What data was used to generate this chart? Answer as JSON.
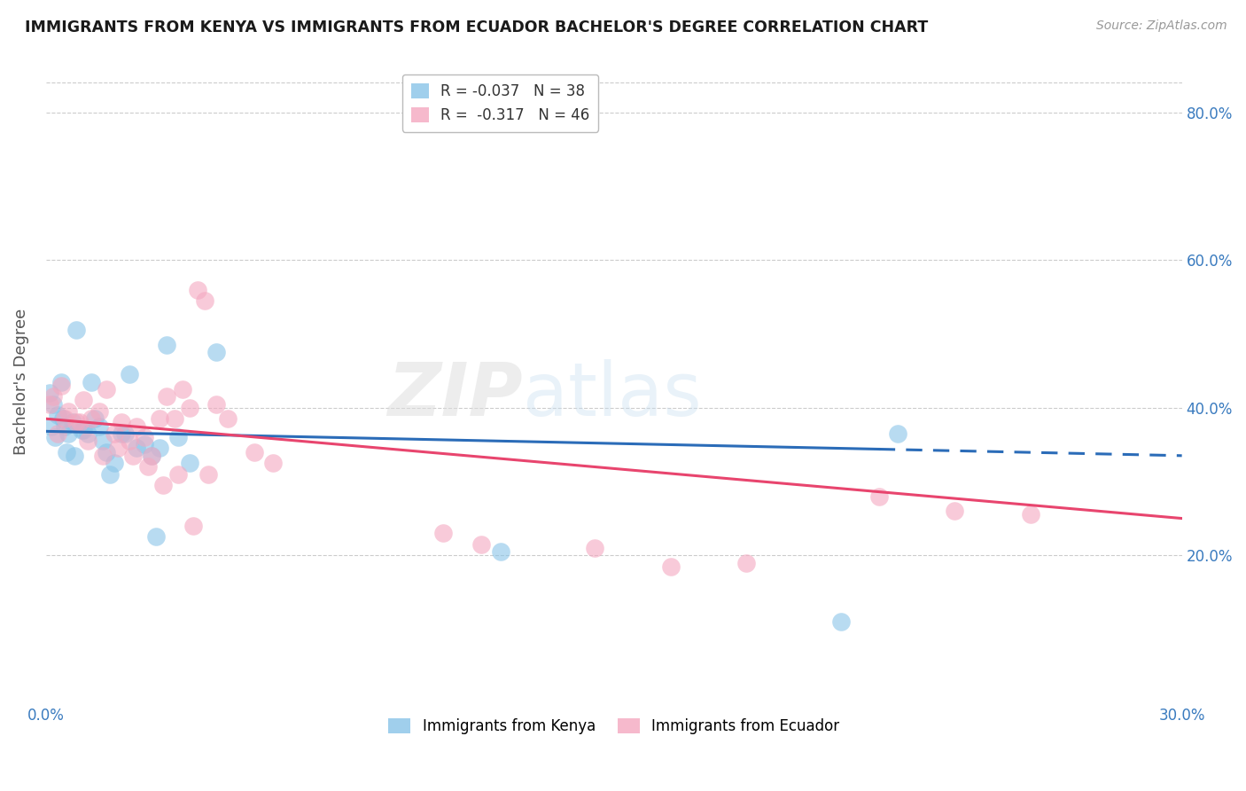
{
  "title": "IMMIGRANTS FROM KENYA VS IMMIGRANTS FROM ECUADOR BACHELOR'S DEGREE CORRELATION CHART",
  "source_text": "Source: ZipAtlas.com",
  "ylabel": "Bachelor's Degree",
  "kenya_color": "#89c4e8",
  "ecuador_color": "#f4a8c0",
  "kenya_line_color": "#2b6cb8",
  "ecuador_line_color": "#e8456e",
  "background_color": "#ffffff",
  "grid_color": "#cccccc",
  "xlim": [
    0.0,
    30.0
  ],
  "ylim": [
    0.0,
    87.0
  ],
  "kenya_scatter_x": [
    0.1,
    0.2,
    0.3,
    0.4,
    0.5,
    0.6,
    0.7,
    0.8,
    1.0,
    1.1,
    1.2,
    1.3,
    1.5,
    1.6,
    1.8,
    2.0,
    2.2,
    2.4,
    2.6,
    2.8,
    3.0,
    3.2,
    3.5,
    3.8,
    0.15,
    0.25,
    0.45,
    0.55,
    0.75,
    0.95,
    1.4,
    1.7,
    2.1,
    4.5,
    12.0,
    21.0,
    22.5,
    2.9
  ],
  "kenya_scatter_y": [
    42.0,
    40.5,
    39.0,
    43.5,
    37.5,
    36.5,
    38.0,
    50.5,
    37.0,
    36.5,
    43.5,
    38.5,
    35.5,
    34.0,
    32.5,
    36.5,
    44.5,
    34.5,
    35.0,
    33.5,
    34.5,
    48.5,
    36.0,
    32.5,
    37.5,
    36.0,
    38.5,
    34.0,
    33.5,
    37.0,
    37.5,
    31.0,
    36.5,
    47.5,
    20.5,
    11.0,
    36.5,
    22.5
  ],
  "ecuador_scatter_x": [
    0.1,
    0.2,
    0.4,
    0.6,
    0.8,
    1.0,
    1.2,
    1.4,
    1.6,
    1.8,
    2.0,
    2.2,
    2.4,
    2.6,
    2.8,
    3.0,
    3.2,
    3.4,
    3.6,
    3.8,
    4.0,
    4.2,
    4.5,
    4.8,
    5.5,
    6.0,
    0.3,
    0.5,
    0.9,
    1.1,
    1.5,
    1.9,
    2.3,
    2.7,
    3.1,
    3.5,
    3.9,
    4.3,
    10.5,
    11.5,
    14.5,
    16.5,
    18.5,
    22.0,
    24.0,
    26.0
  ],
  "ecuador_scatter_y": [
    40.5,
    41.5,
    43.0,
    39.5,
    38.0,
    41.0,
    38.5,
    39.5,
    42.5,
    36.5,
    38.0,
    35.5,
    37.5,
    36.0,
    33.5,
    38.5,
    41.5,
    38.5,
    42.5,
    40.0,
    56.0,
    54.5,
    40.5,
    38.5,
    34.0,
    32.5,
    36.5,
    38.5,
    38.0,
    35.5,
    33.5,
    34.5,
    33.5,
    32.0,
    29.5,
    31.0,
    24.0,
    31.0,
    23.0,
    21.5,
    21.0,
    18.5,
    19.0,
    28.0,
    26.0,
    25.5
  ],
  "kenya_line_x0": 0.0,
  "kenya_line_y0": 36.8,
  "kenya_line_x1": 30.0,
  "kenya_line_y1": 33.5,
  "ecuador_line_x0": 0.0,
  "ecuador_line_y0": 38.5,
  "ecuador_line_x1": 30.0,
  "ecuador_line_y1": 25.0,
  "kenya_solid_end": 22.0,
  "yticks": [
    20,
    40,
    60,
    80
  ],
  "xtick_labels": [
    "0.0%",
    "30.0%"
  ],
  "bottom_legend_labels": [
    "Immigrants from Kenya",
    "Immigrants from Ecuador"
  ]
}
